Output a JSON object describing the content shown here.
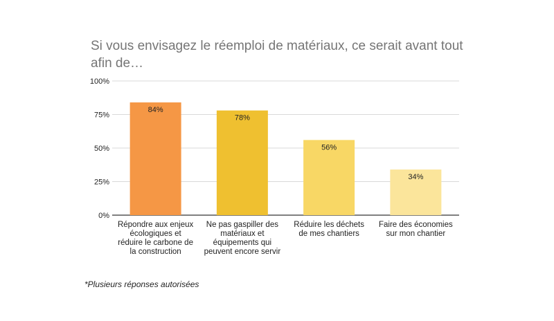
{
  "chart_data": {
    "type": "bar",
    "title": "Si vous envisagez le réemploi de matériaux, ce serait avant tout afin de…",
    "categories": [
      [
        "Répondre aux enjeux",
        "écologiques et",
        "réduire le carbone de",
        "la construction"
      ],
      [
        "Ne pas gaspiller des",
        "matériaux et",
        "équipements qui",
        "peuvent encore servir"
      ],
      [
        "Réduire les déchets",
        "de mes chantiers"
      ],
      [
        "Faire des économies",
        "sur mon chantier"
      ]
    ],
    "values": [
      84,
      78,
      56,
      34
    ],
    "value_labels": [
      "84%",
      "78%",
      "56%",
      "34%"
    ],
    "colors": [
      "#f59745",
      "#efc030",
      "#f8d765",
      "#fbe59b"
    ],
    "yticks": [
      "0%",
      "25%",
      "50%",
      "75%",
      "100%"
    ],
    "ylim": [
      0,
      100
    ],
    "grid": true,
    "xlabel": "",
    "ylabel": ""
  },
  "footnote": "*Plusieurs réponses autorisées"
}
